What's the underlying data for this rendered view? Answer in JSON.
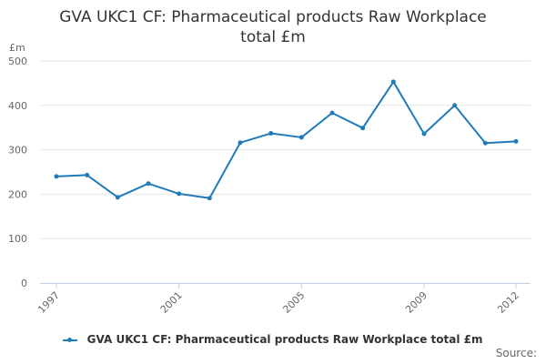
{
  "chart_data": {
    "type": "line",
    "title_lines": [
      "GVA UKC1 CF: Pharmaceutical products Raw Workplace",
      "total £m"
    ],
    "ylabel": "£m",
    "ylim": [
      0,
      500
    ],
    "yticks": [
      "0",
      "100",
      "200",
      "300",
      "400",
      "500"
    ],
    "xtick_labels": [
      "1997",
      "2001",
      "2005",
      "2009",
      "2012"
    ],
    "xrange": [
      1997,
      2012
    ],
    "grid": true,
    "legend_position": "bottom",
    "series": [
      {
        "name": "GVA UKC1 CF: Pharmaceutical products Raw Workplace total £m",
        "color": "#1f7cb8",
        "x": [
          1997,
          1998,
          1999,
          2000,
          2001,
          2002,
          2003,
          2004,
          2005,
          2006,
          2007,
          2008,
          2009,
          2010,
          2011,
          2012
        ],
        "values": [
          240,
          243,
          193,
          224,
          201,
          191,
          316,
          337,
          328,
          383,
          349,
          453,
          336,
          400,
          315,
          319
        ]
      }
    ]
  },
  "footer": {
    "source_label": "Source:"
  }
}
